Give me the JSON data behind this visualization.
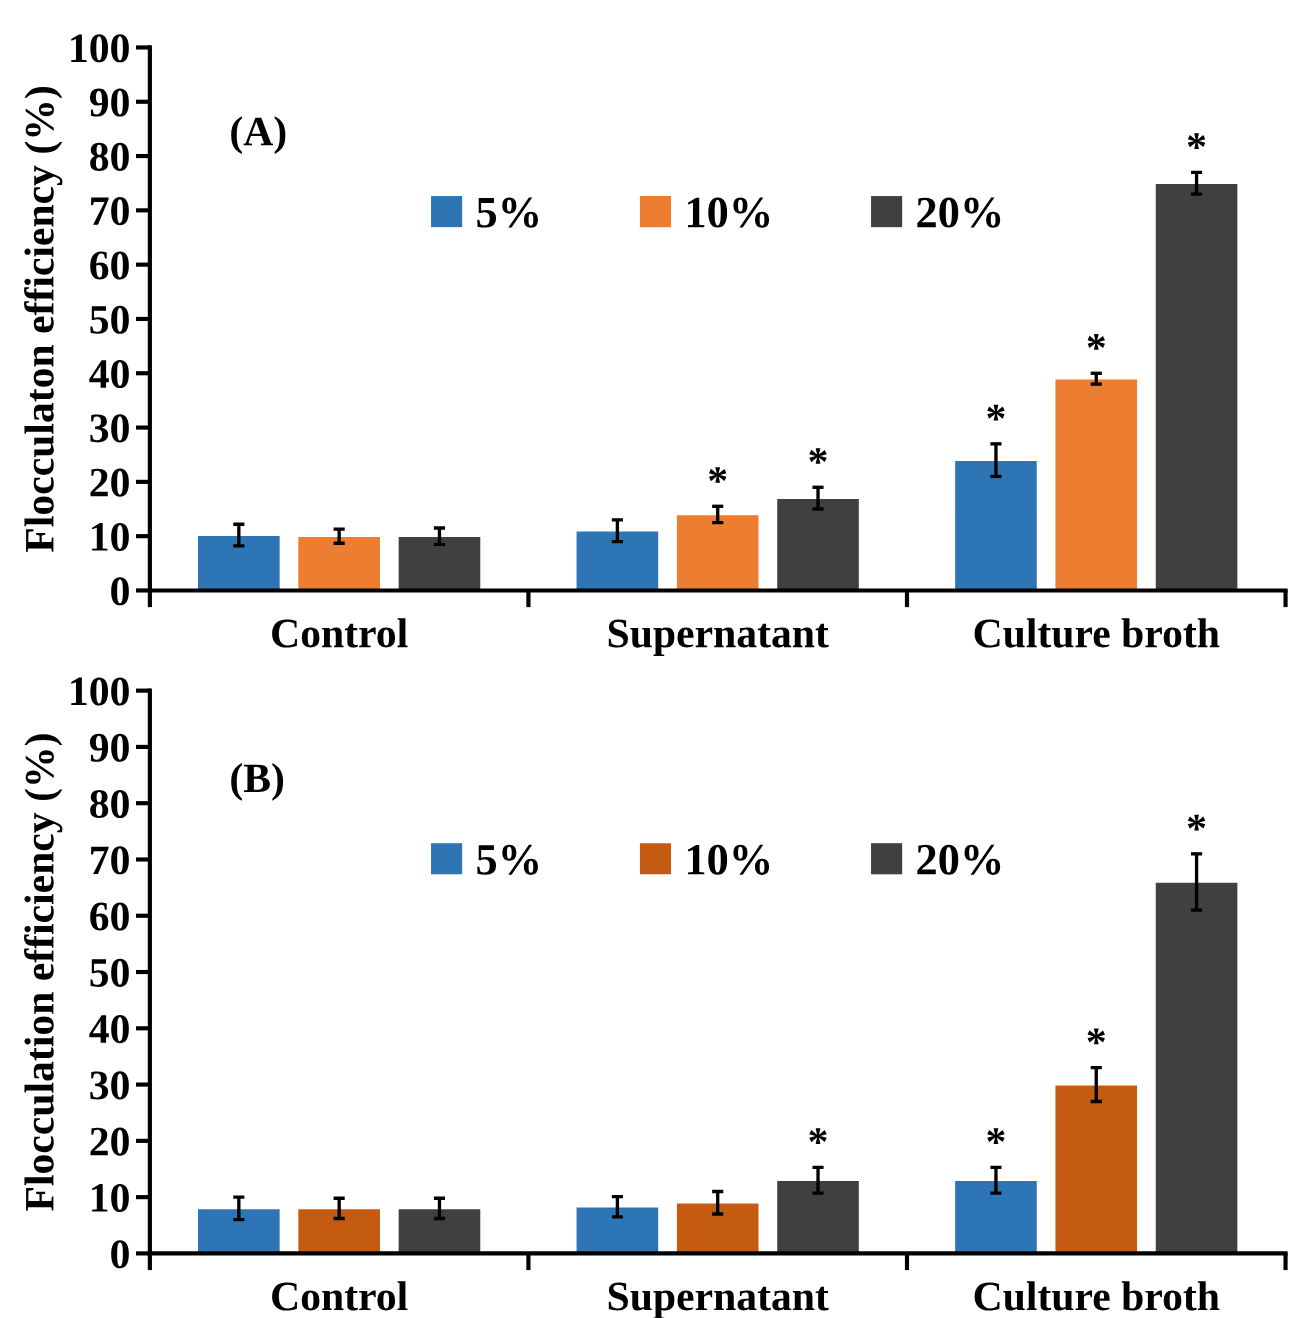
{
  "chart_data": [
    {
      "type": "bar",
      "ylabel": "Flocculaton efficiency (%)",
      "categories": [
        "Control",
        "Supernatant",
        "Culture broth"
      ],
      "ylim": [
        0,
        100
      ],
      "yticks": [
        0,
        10,
        20,
        30,
        40,
        50,
        60,
        70,
        80,
        90,
        100
      ],
      "grid": false,
      "legend": "top",
      "annotations": [
        "(A)"
      ],
      "series": [
        {
          "name": "5%",
          "color": "#2e75b6",
          "values": [
            10.2,
            11,
            24
          ],
          "errors": [
            2,
            2,
            3
          ],
          "value_labels": [
            null,
            null,
            "*"
          ]
        },
        {
          "name": "10%",
          "color": "#ed7d31",
          "values": [
            10,
            14,
            39
          ],
          "errors": [
            1.3,
            1.5,
            1
          ],
          "value_labels": [
            null,
            "*",
            "*"
          ]
        },
        {
          "name": "20%",
          "color": "#404040",
          "values": [
            10,
            17,
            75
          ],
          "errors": [
            1.5,
            2,
            2
          ],
          "value_labels": [
            null,
            "*",
            "*"
          ]
        }
      ]
    },
    {
      "type": "bar",
      "ylabel": "Flocculation efficiency (%)",
      "categories": [
        "Control",
        "Supernatant",
        "Culture broth"
      ],
      "ylim": [
        0,
        100
      ],
      "yticks": [
        0,
        10,
        20,
        30,
        40,
        50,
        60,
        70,
        80,
        90,
        100
      ],
      "grid": false,
      "legend": "top",
      "annotations": [
        "(B)"
      ],
      "series": [
        {
          "name": "5%",
          "color": "#2e75b6",
          "values": [
            8,
            8.3,
            13
          ],
          "errors": [
            2,
            1.8,
            2.3
          ],
          "value_labels": [
            null,
            null,
            "*"
          ]
        },
        {
          "name": "10%",
          "color": "#c55a11",
          "values": [
            8,
            9,
            30
          ],
          "errors": [
            1.8,
            2,
            3
          ],
          "value_labels": [
            null,
            null,
            "*"
          ]
        },
        {
          "name": "20%",
          "color": "#404040",
          "values": [
            8,
            13,
            66
          ],
          "errors": [
            1.8,
            2.3,
            5
          ],
          "value_labels": [
            null,
            "*",
            "*"
          ]
        }
      ]
    }
  ]
}
